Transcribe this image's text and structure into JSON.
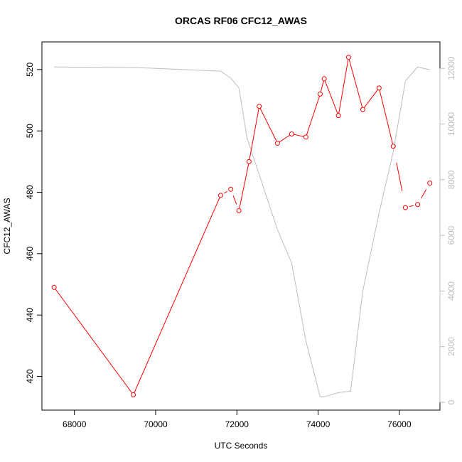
{
  "chart_data": {
    "type": "line",
    "title": "ORCAS RF06 CFC12_AWAS",
    "xlabel": "UTC Seconds",
    "ylabel": "CFC12_AWAS",
    "xlim": [
      67200,
      77000
    ],
    "ylim": [
      409,
      529
    ],
    "y2lim": [
      -280,
      12950
    ],
    "x_ticks": [
      68000,
      70000,
      72000,
      74000,
      76000
    ],
    "y_ticks": [
      420,
      440,
      460,
      480,
      500,
      520
    ],
    "y2_ticks": [
      0,
      2000,
      4000,
      6000,
      8000,
      10000,
      12000
    ],
    "series": [
      {
        "axis": "left",
        "color": "#ff0000",
        "marker": "open-circle",
        "x": [
          67500,
          69450,
          71600,
          71850,
          72050,
          72300,
          72550,
          73000,
          73350,
          73700,
          74050,
          74150,
          74500,
          74750,
          75100,
          75500,
          75850,
          76150,
          76450,
          76750
        ],
        "y": [
          449,
          414,
          479,
          481,
          474,
          490,
          508,
          496,
          499,
          498,
          512,
          517,
          505,
          524,
          507,
          514,
          495,
          475,
          476,
          483
        ],
        "gaps_after": [
          2,
          3,
          16,
          17,
          18
        ]
      },
      {
        "axis": "right",
        "color": "#bebebe",
        "marker": "none",
        "x": [
          67500,
          69500,
          71600,
          71850,
          72050,
          72250,
          72500,
          73000,
          73350,
          73700,
          74050,
          74150,
          74500,
          74800,
          75100,
          75500,
          75850,
          76150,
          76450,
          76750
        ],
        "y": [
          12050,
          12030,
          11900,
          11650,
          11300,
          9500,
          8400,
          6200,
          5000,
          2200,
          200,
          200,
          350,
          400,
          4000,
          6800,
          9000,
          11550,
          12050,
          11950
        ]
      }
    ]
  }
}
